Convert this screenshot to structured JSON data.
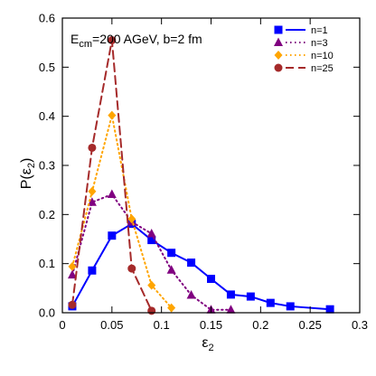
{
  "chart_data": {
    "type": "line",
    "annotation": {
      "main": "E",
      "sub": "cm",
      "rest": "=200 AGeV, b=2 fm"
    },
    "xlabel": {
      "main": "ε",
      "sub": "2"
    },
    "ylabel": {
      "main": "P(ε",
      "sub": "2",
      "close": ")"
    },
    "xlim": [
      0,
      0.3
    ],
    "ylim": [
      0,
      0.6
    ],
    "x_ticks": [
      0,
      0.05,
      0.1,
      0.15,
      0.2,
      0.25,
      0.3
    ],
    "x_tick_labels": [
      "0",
      "0.05",
      "0.1",
      "0.15",
      "0.2",
      "0.25",
      "0.3"
    ],
    "y_ticks": [
      0,
      0.1,
      0.2,
      0.3,
      0.4,
      0.5,
      0.6
    ],
    "y_tick_labels": [
      "0.0",
      "0.1",
      "0.2",
      "0.3",
      "0.4",
      "0.5",
      "0.6"
    ],
    "grid": false,
    "legend_position": "top-right",
    "series": [
      {
        "name": "n=1",
        "color": "#0000ff",
        "marker": "square",
        "dash": "solid",
        "x": [
          0.01,
          0.03,
          0.05,
          0.07,
          0.09,
          0.11,
          0.13,
          0.15,
          0.17,
          0.19,
          0.21,
          0.23,
          0.27
        ],
        "y": [
          0.013,
          0.086,
          0.157,
          0.181,
          0.148,
          0.122,
          0.102,
          0.069,
          0.037,
          0.033,
          0.02,
          0.013,
          0.007
        ]
      },
      {
        "name": "n=3",
        "color": "#800080",
        "marker": "triangle",
        "dash": "dotted",
        "x": [
          0.01,
          0.03,
          0.05,
          0.07,
          0.09,
          0.11,
          0.13,
          0.15,
          0.17
        ],
        "y": [
          0.077,
          0.225,
          0.241,
          0.185,
          0.161,
          0.087,
          0.036,
          0.006,
          0.006
        ]
      },
      {
        "name": "n=10",
        "color": "#ffa500",
        "marker": "diamond",
        "dash": "dotted",
        "x": [
          0.01,
          0.03,
          0.05,
          0.07,
          0.09,
          0.11
        ],
        "y": [
          0.094,
          0.247,
          0.402,
          0.191,
          0.056,
          0.01
        ]
      },
      {
        "name": "n=25",
        "color": "#a52a2a",
        "marker": "circle",
        "dash": "dashed",
        "x": [
          0.01,
          0.03,
          0.05,
          0.07,
          0.09
        ],
        "y": [
          0.016,
          0.336,
          0.555,
          0.09,
          0.004
        ]
      }
    ]
  }
}
